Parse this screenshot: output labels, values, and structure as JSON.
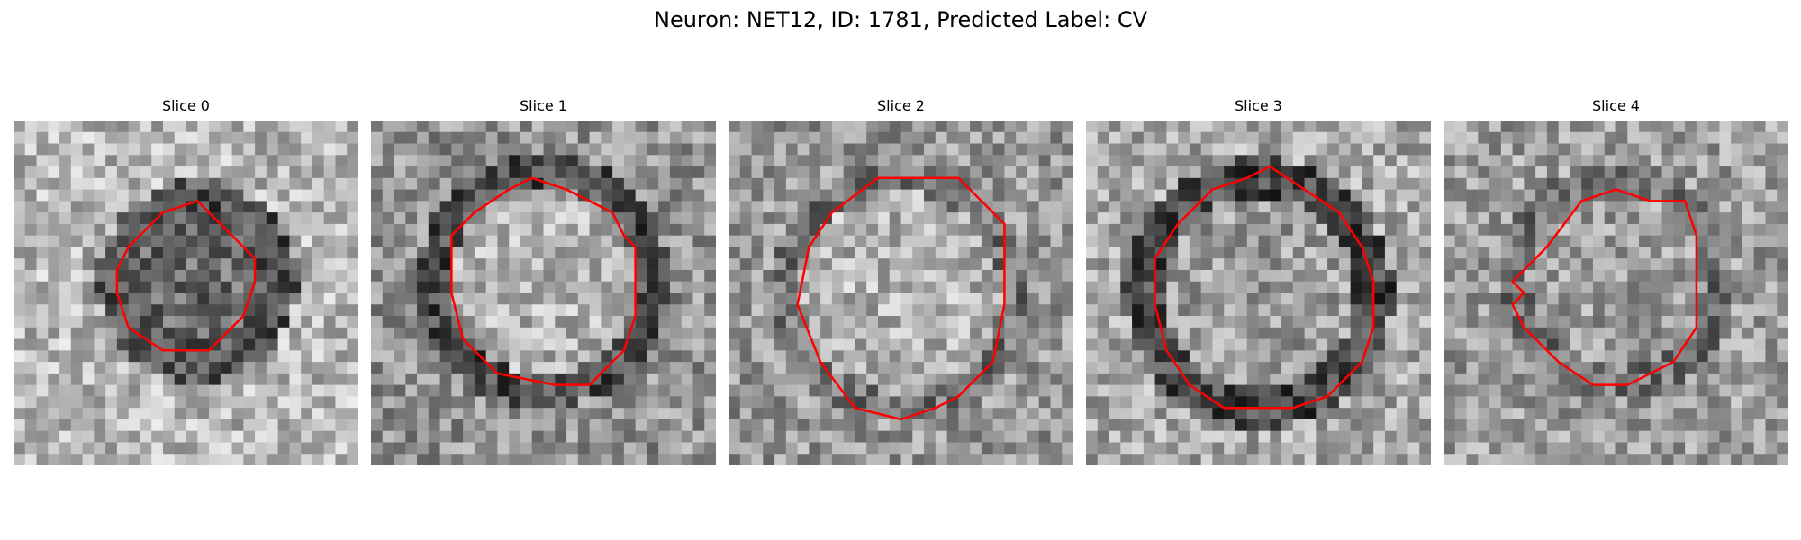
{
  "figure": {
    "title": "Neuron: NET12, ID: 1781, Predicted Label: CV",
    "contour_color": "#ff0000"
  },
  "panels": [
    {
      "title": "Slice 0"
    },
    {
      "title": "Slice 1"
    },
    {
      "title": "Slice 2"
    },
    {
      "title": "Slice 3"
    },
    {
      "title": "Slice 4"
    }
  ]
}
